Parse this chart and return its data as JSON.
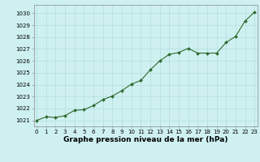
{
  "hours": [
    0,
    1,
    2,
    3,
    4,
    5,
    6,
    7,
    8,
    9,
    10,
    11,
    12,
    13,
    14,
    15,
    16,
    17,
    18,
    19,
    20,
    21,
    22,
    23
  ],
  "pressure": [
    1021.0,
    1021.3,
    1021.25,
    1021.4,
    1021.85,
    1021.9,
    1022.25,
    1022.75,
    1023.05,
    1023.5,
    1024.05,
    1024.35,
    1025.25,
    1026.0,
    1026.55,
    1026.7,
    1027.05,
    1026.65,
    1026.65,
    1026.65,
    1027.55,
    1028.05,
    1029.35,
    1030.1
  ],
  "xlim": [
    -0.3,
    23.3
  ],
  "ylim": [
    1020.5,
    1030.7
  ],
  "yticks": [
    1021,
    1022,
    1023,
    1024,
    1025,
    1026,
    1027,
    1028,
    1029,
    1030
  ],
  "xticks": [
    0,
    1,
    2,
    3,
    4,
    5,
    6,
    7,
    8,
    9,
    10,
    11,
    12,
    13,
    14,
    15,
    16,
    17,
    18,
    19,
    20,
    21,
    22,
    23
  ],
  "line_color": "#2d6a2d",
  "marker": "D",
  "marker_size": 2.0,
  "line_width": 0.8,
  "bg_color": "#cff0f0",
  "grid_color": "#aadada",
  "xlabel": "Graphe pression niveau de la mer (hPa)",
  "xlabel_fontsize": 6.5,
  "tick_fontsize": 5.0,
  "spine_color": "#888888"
}
